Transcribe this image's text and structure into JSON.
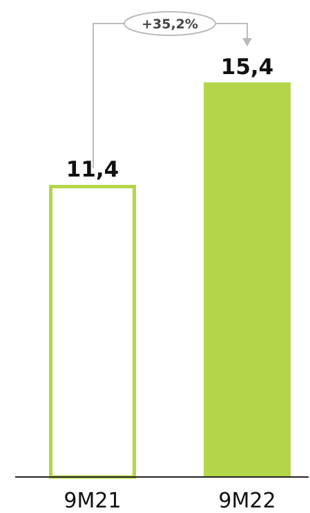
{
  "chart_data": {
    "type": "bar",
    "categories": [
      "9M21",
      "9M22"
    ],
    "values": [
      11.4,
      15.4
    ],
    "value_labels": [
      "11,4",
      "15,4"
    ],
    "ylim": [
      0,
      15.4
    ],
    "grid": false,
    "change_label": "+35,2%",
    "colors": {
      "bar": "#b4d44a",
      "baseline": "#222222",
      "connector": "#bbbbbb"
    },
    "bar_styles": [
      "outline",
      "filled"
    ]
  }
}
